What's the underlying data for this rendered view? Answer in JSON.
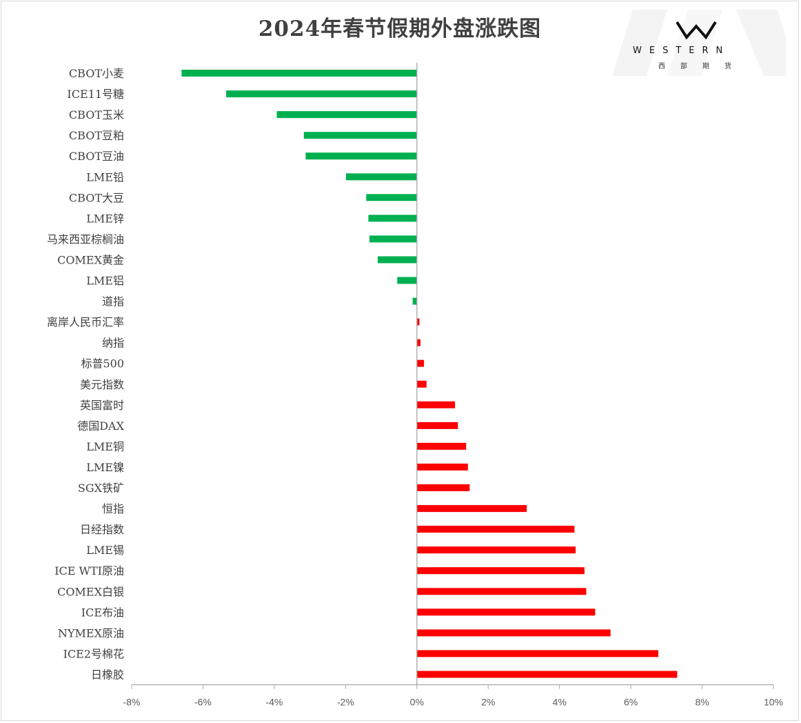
{
  "logo": {
    "text": "WESTERN",
    "sub": "西部期货"
  },
  "chart_data": {
    "type": "bar",
    "orientation": "horizontal",
    "title": "2024年春节假期外盘涨跌图",
    "xlabel": "",
    "ylabel": "",
    "xlim": [
      -8,
      10
    ],
    "xticks": [
      "-8%",
      "-6%",
      "-4%",
      "-2%",
      "0%",
      "2%",
      "4%",
      "6%",
      "8%",
      "10%"
    ],
    "grid": false,
    "legend": "none",
    "colors": {
      "negative": "#00b050",
      "positive": "#ff0000"
    },
    "categories": [
      "CBOT小麦",
      "ICE11号糖",
      "CBOT玉米",
      "CBOT豆粕",
      "CBOT豆油",
      "LME铅",
      "CBOT大豆",
      "LME锌",
      "马来西亚棕榈油",
      "COMEX黄金",
      "LME铝",
      "道指",
      "离岸人民币汇率",
      "纳指",
      "标普500",
      "美元指数",
      "英国富时",
      "德国DAX",
      "LME铜",
      "LME镍",
      "SGX铁矿",
      "恒指",
      "日经指数",
      "LME锡",
      "ICE WTI原油",
      "COMEX白银",
      "ICE布油",
      "NYMEX原油",
      "ICE2号棉花",
      "日橡胶"
    ],
    "values": [
      -6.6,
      -5.35,
      -3.93,
      -3.17,
      -3.12,
      -1.99,
      -1.42,
      -1.36,
      -1.33,
      -1.1,
      -0.55,
      -0.12,
      0.07,
      0.1,
      0.2,
      0.27,
      1.07,
      1.15,
      1.38,
      1.43,
      1.48,
      3.08,
      4.42,
      4.45,
      4.7,
      4.75,
      5.0,
      5.43,
      6.77,
      7.3
    ]
  }
}
